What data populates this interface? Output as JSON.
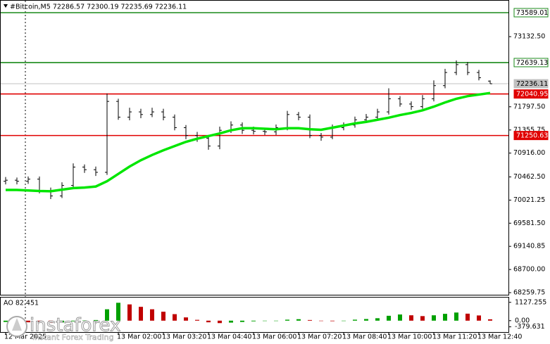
{
  "chart_data": [
    {
      "type": "candlestick",
      "title": "#Bitcoin,M5  72286.57 72300.19 72235.69 72236.11",
      "categories": [
        "12 Mar 2025",
        null,
        null,
        null,
        null,
        null,
        null,
        null,
        null,
        null,
        "13 Mar 02:00",
        null,
        null,
        null,
        "13 Mar 03:20",
        null,
        null,
        null,
        "13 Mar 04:40",
        null,
        null,
        null,
        "13 Mar 06:00",
        null,
        null,
        null,
        "13 Mar 07:20",
        null,
        null,
        null,
        "13 Mar 08:40",
        null,
        null,
        null,
        "13 Mar 10:00",
        null,
        null,
        null,
        "13 Mar 11:20",
        null,
        null,
        null,
        "13 Mar 12:40",
        null
      ],
      "open": [
        70380,
        70400,
        70380,
        70420,
        70200,
        70100,
        70300,
        70650,
        70600,
        70550,
        71900,
        71600,
        71700,
        71650,
        71700,
        71600,
        71400,
        71250,
        71200,
        71050,
        71350,
        71450,
        71350,
        71330,
        71320,
        71400,
        71650,
        71600,
        71250,
        71220,
        71400,
        71450,
        71550,
        71600,
        71700,
        71950,
        71850,
        71800,
        71950,
        72200,
        72450,
        72600,
        72450,
        72286.57
      ],
      "high": [
        70460,
        70450,
        70470,
        70470,
        70260,
        70360,
        70720,
        70700,
        70660,
        72050,
        71950,
        71780,
        71760,
        71780,
        71760,
        71650,
        71450,
        71320,
        71260,
        71420,
        71520,
        71500,
        71420,
        71400,
        71460,
        71720,
        71700,
        71650,
        71300,
        71460,
        71500,
        71610,
        71660,
        71760,
        72150,
        72000,
        71900,
        72020,
        72300,
        72520,
        72680,
        72650,
        72500,
        72300.19
      ],
      "low": [
        70320,
        70320,
        70330,
        70150,
        70040,
        70060,
        70260,
        70540,
        70480,
        70500,
        71550,
        71540,
        71580,
        71600,
        71540,
        71350,
        71180,
        71130,
        70980,
        70990,
        71300,
        71280,
        71270,
        71260,
        71260,
        71350,
        71540,
        71200,
        71150,
        71180,
        71350,
        71400,
        71500,
        71560,
        71650,
        71800,
        71740,
        71760,
        71900,
        72150,
        72400,
        72400,
        72300,
        72235.69
      ],
      "close": [
        70400,
        70380,
        70420,
        70200,
        70100,
        70300,
        70650,
        70600,
        70550,
        71900,
        71600,
        71700,
        71650,
        71700,
        71600,
        71400,
        71250,
        71200,
        71050,
        71350,
        71450,
        71350,
        71330,
        71320,
        71400,
        71650,
        71600,
        71250,
        71220,
        71400,
        71450,
        71550,
        71600,
        71700,
        71950,
        71850,
        71800,
        71950,
        72200,
        72450,
        72600,
        72450,
        72350,
        72236.11
      ],
      "color": "#000000",
      "moving_average": {
        "color": "#00e600",
        "values": [
          70215,
          70215,
          70205,
          70195,
          70190,
          70220,
          70250,
          70260,
          70280,
          70380,
          70520,
          70660,
          70780,
          70880,
          70970,
          71050,
          71130,
          71190,
          71240,
          71290,
          71350,
          71390,
          71390,
          71380,
          71370,
          71390,
          71390,
          71370,
          71360,
          71400,
          71440,
          71480,
          71510,
          71550,
          71590,
          71640,
          71680,
          71730,
          71800,
          71880,
          71950,
          72000,
          72030,
          72060
        ]
      },
      "hlines": [
        {
          "value": 73589.01,
          "color": "#1a8a1a",
          "label_fill": "#ffffff",
          "label_color": "#000000"
        },
        {
          "value": 72639.13,
          "color": "#1a8a1a",
          "label_fill": "#ffffff",
          "label_color": "#000000"
        },
        {
          "value": 72236.11,
          "color": "#c0c0c0",
          "label_fill": "#c0c0c0",
          "label_color": "#000000"
        },
        {
          "value": 72040.95,
          "color": "#e00000",
          "label_fill": "#e00000",
          "label_color": "#ffffff"
        },
        {
          "value": 71250.63,
          "color": "#e00000",
          "label_fill": "#e00000",
          "label_color": "#ffffff"
        }
      ],
      "ylim": [
        68206,
        73830
      ],
      "yticks": [
        {
          "value": 73132.5,
          "label": "73132.50"
        },
        {
          "value": 71797.5,
          "label": "71797.50"
        },
        71355.75,
        {
          "value": 70916,
          "label": "70916.00"
        },
        {
          "value": 70462.5,
          "label": "70462.50"
        },
        70021.25,
        {
          "value": 69581.5,
          "label": "69581.50"
        },
        69140.85,
        {
          "value": 68700,
          "label": "68700.00"
        },
        68259.75
      ]
    },
    {
      "type": "histogram-indicator",
      "title": "AO 82.451",
      "values": [
        -80,
        -90,
        -100,
        -120,
        -140,
        -110,
        -40,
        10,
        40,
        700,
        1100,
        1000,
        850,
        700,
        550,
        400,
        200,
        50,
        -100,
        -150,
        -120,
        -80,
        -40,
        -20,
        0,
        60,
        90,
        40,
        -20,
        -30,
        0,
        60,
        100,
        150,
        300,
        380,
        330,
        280,
        330,
        420,
        500,
        430,
        320,
        82.451
      ],
      "up_color": "#00a000",
      "down_color": "#c00000",
      "ylim": [
        -700,
        1420
      ],
      "yticks": [
        1127.255,
        {
          "value": 0,
          "label": "0.00"
        },
        -379.631
      ]
    }
  ],
  "watermark": {
    "brand": "instaforex",
    "tagline": "Instant Forex Trading"
  }
}
